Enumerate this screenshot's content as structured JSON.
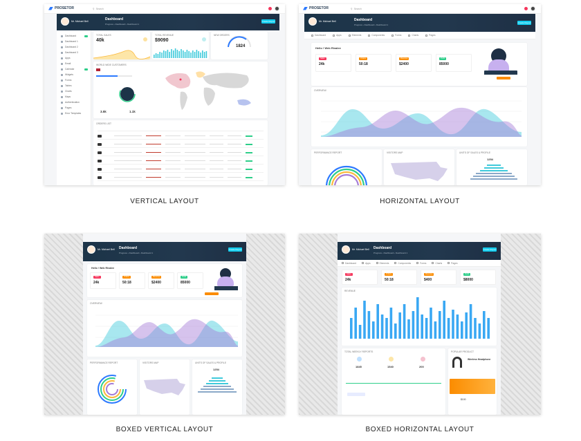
{
  "captions": {
    "vertical": "VERTICAL LAYOUT",
    "horizontal": "HORIZONTAL LAYOUT",
    "boxed_vertical": "BOXED VERTICAL LAYOUT",
    "boxed_horizontal": "BOXED HORIZONTAL LAYOUT"
  },
  "app": {
    "brand": "PROSETOR",
    "search_placeholder": "Search",
    "user_name": "Mr. Michael Bell",
    "page_title": "Dashboard",
    "breadcrumb": "Progress  ›  Dashboard  ›  Dashboard 1",
    "hero_button": "Create Report"
  },
  "vertical": {
    "sidebar_items": [
      "Dashboard",
      "Dashboard 1",
      "Dashboard 2",
      "Dashboard 3",
      "Apps",
      "Email",
      "Calendar",
      "Widgets",
      "Forms",
      "Tables",
      "Charts",
      "Maps",
      "Authentication",
      "Pages",
      "Error Templates"
    ],
    "cards": [
      {
        "title": "TOTAL SALES",
        "value": "40k"
      },
      {
        "title": "TOTAL REVENUE",
        "value": "$9090"
      },
      {
        "title": "NEW ORDERS",
        "value": "1824"
      }
    ],
    "map_title": "WORLD WIDE CUSTOMERS",
    "map_stats": [
      {
        "value": "3.5k"
      },
      {
        "value": "1.1k"
      }
    ],
    "table_title": "ORDERS LIST",
    "table_rows": 6
  },
  "horizontal": {
    "tabs": [
      "Dashboard",
      "Apps",
      "Elements",
      "Components",
      "Forms",
      "Charts",
      "Pages"
    ],
    "welcome": "Hello ! Web Rivalee",
    "stats": [
      {
        "tag": "Sales",
        "value": "24k",
        "color": "#f5365c"
      },
      {
        "tag": "Orders",
        "value": "50:18",
        "color": "#fb8c00"
      },
      {
        "tag": "Revenue",
        "value": "$2400",
        "color": "#fb8c00"
      },
      {
        "tag": "Profit",
        "value": "85000",
        "color": "#2dce89"
      }
    ],
    "overview_title": "OVERVIEW",
    "bottom_titles": [
      "PERFORMANCE REPORT",
      "VISITORS MAP",
      "UNITS OF SALES & PROFILE"
    ],
    "bottom_value": "1254"
  },
  "boxed_vertical": {
    "welcome": "Hello ! Web Rivalee",
    "stats": [
      {
        "tag": "Sales",
        "value": "24k",
        "color": "#f5365c"
      },
      {
        "tag": "Orders",
        "value": "50:18",
        "color": "#fb8c00"
      },
      {
        "tag": "Revenue",
        "value": "$2400",
        "color": "#fb8c00"
      },
      {
        "tag": "Profit",
        "value": "85000",
        "color": "#2dce89"
      }
    ],
    "overview_title": "OVERVIEW",
    "bottom_titles": [
      "PERFORMANCE REPORT",
      "VISITORS MAP",
      "UNITS OF SALES & PROFILE"
    ],
    "bottom_value": "1254"
  },
  "boxed_horizontal": {
    "stats": [
      {
        "tag": "Sales",
        "value": "24k",
        "color": "#f5365c"
      },
      {
        "tag": "Orders",
        "value": "50:18",
        "color": "#fb8c00"
      },
      {
        "tag": "Revenue",
        "value": "$400",
        "color": "#fb8c00"
      },
      {
        "tag": "Profit",
        "value": "$8000",
        "color": "#2dce89"
      }
    ],
    "revenue_title": "REVENUE",
    "weekly_title": "TOTAL WEEKLY REPORTS",
    "weekly_values": [
      "1845",
      "1540",
      "200"
    ],
    "product_title": "POPULAR PRODUCT",
    "product_name": "Wireless Headphone",
    "product_price": "$100"
  },
  "colors": {
    "teal": "#3ecadb",
    "purple": "#a57bd6",
    "navy": "#1c3448",
    "accent": "#11cdef",
    "bar": "#3aa8f3"
  }
}
